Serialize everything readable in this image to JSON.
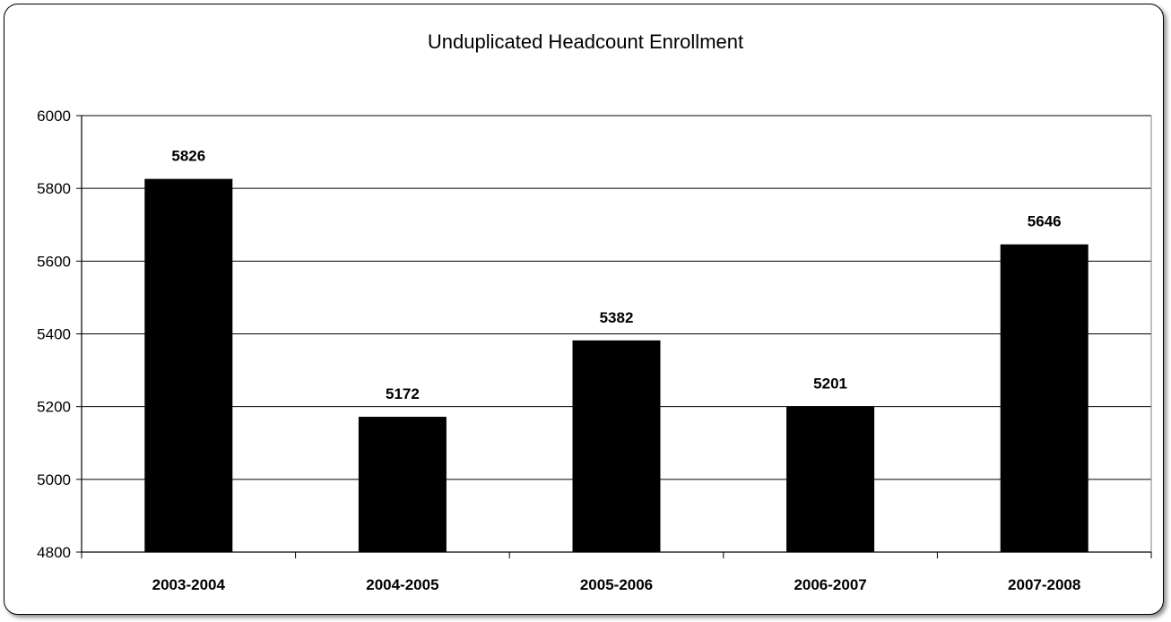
{
  "chart_data": {
    "type": "bar",
    "title": "Unduplicated Headcount Enrollment",
    "categories": [
      "2003-2004",
      "2004-2005",
      "2005-2006",
      "2006-2007",
      "2007-2008"
    ],
    "values": [
      5826,
      5172,
      5382,
      5201,
      5646
    ],
    "data_labels": [
      "5826",
      "5172",
      "5382",
      "5201",
      "5646"
    ],
    "ylim": [
      4800,
      6000
    ],
    "yticks": [
      4800,
      5000,
      5200,
      5400,
      5600,
      5800,
      6000
    ],
    "ytick_labels": [
      "4800",
      "5000",
      "5200",
      "5400",
      "5600",
      "5800",
      "6000"
    ],
    "xlabel": "",
    "ylabel": "",
    "grid": true,
    "legend": "none",
    "bar_color": "#000000",
    "grid_color": "#000000"
  }
}
